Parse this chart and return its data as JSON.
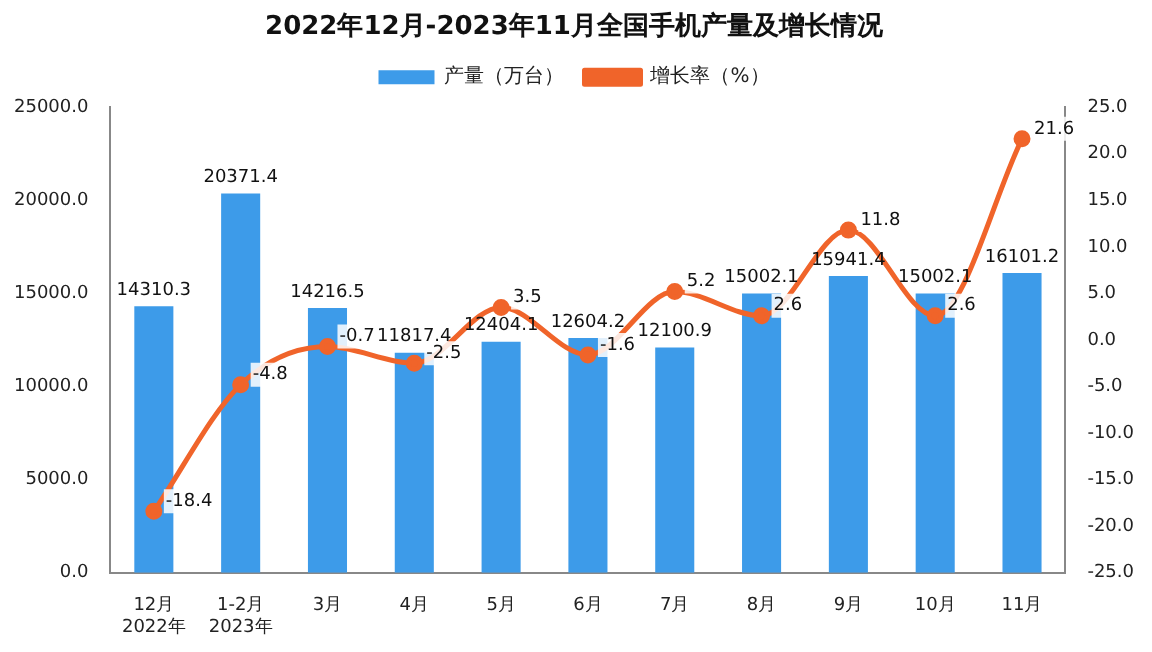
{
  "chart_data": {
    "type": "bar",
    "title": "2022年12月-2023年11月全国手机产量及增长情况",
    "categories": [
      "12月\n2022年",
      "1-2月\n2023年",
      "3月",
      "4月",
      "5月",
      "6月",
      "7月",
      "8月",
      "9月",
      "10月",
      "11月"
    ],
    "series": [
      {
        "name": "产量（万台）",
        "color": "#3d9be9",
        "values": [
          14310.3,
          20371.4,
          14216.5,
          11817.4,
          12404.1,
          12604.2,
          12100.9,
          15002.1,
          15941.4,
          15002.1,
          16101.2
        ]
      },
      {
        "name": "增长率（%）",
        "type": "line",
        "axis": "y2",
        "color": "#f0642a",
        "marker": "circle",
        "values": [
          -18.4,
          -4.8,
          -0.7,
          -2.5,
          3.5,
          -1.6,
          5.2,
          2.6,
          11.8,
          2.6,
          21.6
        ]
      }
    ],
    "ylim": [
      0,
      25000
    ],
    "yticks": [
      {
        "value": 0,
        "label": "0.0"
      },
      {
        "value": 5000,
        "label": "5000.0"
      },
      {
        "value": 10000,
        "label": "10000.0"
      },
      {
        "value": 15000,
        "label": "15000.0"
      },
      {
        "value": 20000,
        "label": "20000.0"
      },
      {
        "value": 25000,
        "label": "25000.0"
      }
    ],
    "y2lim": [
      -25,
      25
    ],
    "y2ticks": [
      {
        "value": -25,
        "label": "-25.0"
      },
      {
        "value": -20,
        "label": "-20.0"
      },
      {
        "value": -15,
        "label": "-15.0"
      },
      {
        "value": -10,
        "label": "-10.0"
      },
      {
        "value": -5,
        "label": "-5.0"
      },
      {
        "value": 0,
        "label": "0.0"
      },
      {
        "value": 5,
        "label": "5.0"
      },
      {
        "value": 10,
        "label": "10.0"
      },
      {
        "value": 15,
        "label": "15.0"
      },
      {
        "value": 20,
        "label": "20.0"
      },
      {
        "value": 25,
        "label": "25.0"
      }
    ],
    "grid": false,
    "legend": "top",
    "data_labels": true
  }
}
